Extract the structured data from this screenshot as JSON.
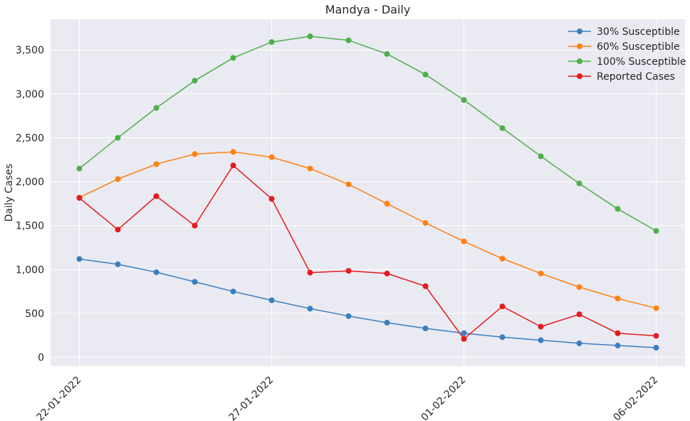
{
  "chart_data": {
    "type": "line",
    "title": "Mandya - Daily",
    "xlabel": "",
    "ylabel": "Daily Cases",
    "x": [
      "2022-01-22",
      "2022-01-23",
      "2022-01-24",
      "2022-01-25",
      "2022-01-26",
      "2022-01-27",
      "2022-01-28",
      "2022-01-29",
      "2022-01-30",
      "2022-01-31",
      "2022-02-01",
      "2022-02-02",
      "2022-02-03",
      "2022-02-04",
      "2022-02-05",
      "2022-02-06"
    ],
    "xticks": [
      {
        "date": "2022-01-22",
        "label": "22-01-2022"
      },
      {
        "date": "2022-01-27",
        "label": "27-01-2022"
      },
      {
        "date": "2022-02-01",
        "label": "01-02-2022"
      },
      {
        "date": "2022-02-06",
        "label": "06-02-2022"
      }
    ],
    "yticks": [
      {
        "value": 0,
        "label": "0"
      },
      {
        "value": 500,
        "label": "500"
      },
      {
        "value": 1000,
        "label": "1,000"
      },
      {
        "value": 1500,
        "label": "1,500"
      },
      {
        "value": 2000,
        "label": "2,000"
      },
      {
        "value": 2500,
        "label": "2,500"
      },
      {
        "value": 3000,
        "label": "3,000"
      },
      {
        "value": 3500,
        "label": "3,500"
      }
    ],
    "ylim": [
      -100,
      3850
    ],
    "grid": true,
    "legend_position": "top-right",
    "series": [
      {
        "name": "30% Susceptible",
        "color": "#3a7ebf",
        "values": [
          1120,
          1060,
          970,
          860,
          750,
          650,
          555,
          470,
          395,
          330,
          275,
          230,
          195,
          160,
          135,
          110
        ]
      },
      {
        "name": "60% Susceptible",
        "color": "#ff8011",
        "values": [
          1820,
          2030,
          2200,
          2315,
          2340,
          2280,
          2150,
          1970,
          1750,
          1530,
          1320,
          1125,
          955,
          800,
          670,
          560
        ]
      },
      {
        "name": "100% Susceptible",
        "color": "#4daf4a",
        "values": [
          2150,
          2500,
          2840,
          3150,
          3410,
          3590,
          3655,
          3610,
          3455,
          3220,
          2930,
          2610,
          2290,
          1980,
          1690,
          1440
        ]
      },
      {
        "name": "Reported Cases",
        "color": "#e41a1c",
        "values": [
          1815,
          1455,
          1835,
          1500,
          2185,
          1805,
          965,
          985,
          955,
          810,
          210,
          580,
          350,
          490,
          275,
          245
        ]
      }
    ]
  }
}
